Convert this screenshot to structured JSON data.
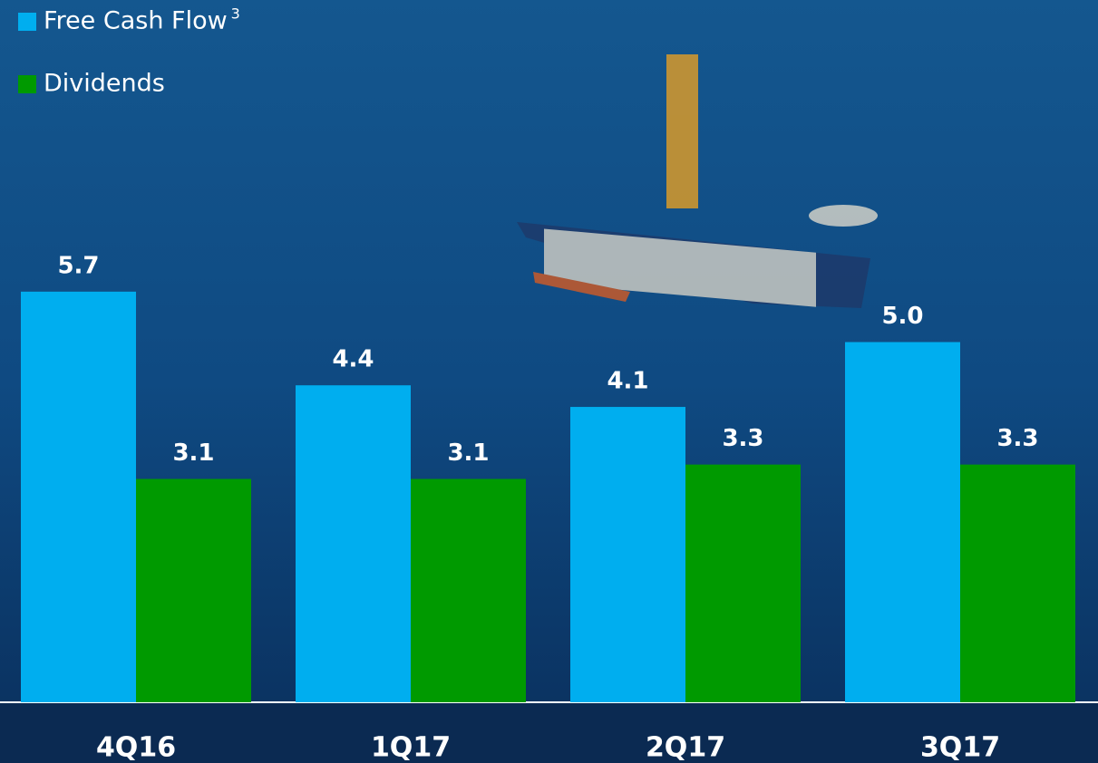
{
  "chart_data": {
    "type": "bar",
    "categories": [
      "4Q16",
      "1Q17",
      "2Q17",
      "3Q17"
    ],
    "series": [
      {
        "name": "Free Cash Flow",
        "footnote": "3",
        "color": "#00aeef",
        "values": [
          5.7,
          4.4,
          4.1,
          5.0
        ],
        "value_labels": [
          "5.7",
          "4.4",
          "4.1",
          "5.0"
        ]
      },
      {
        "name": "Dividends",
        "color": "#009a00",
        "values": [
          3.1,
          3.1,
          3.3,
          3.3
        ],
        "value_labels": [
          "3.1",
          "3.1",
          "3.3",
          "3.3"
        ]
      }
    ],
    "legend": "top-left"
  }
}
